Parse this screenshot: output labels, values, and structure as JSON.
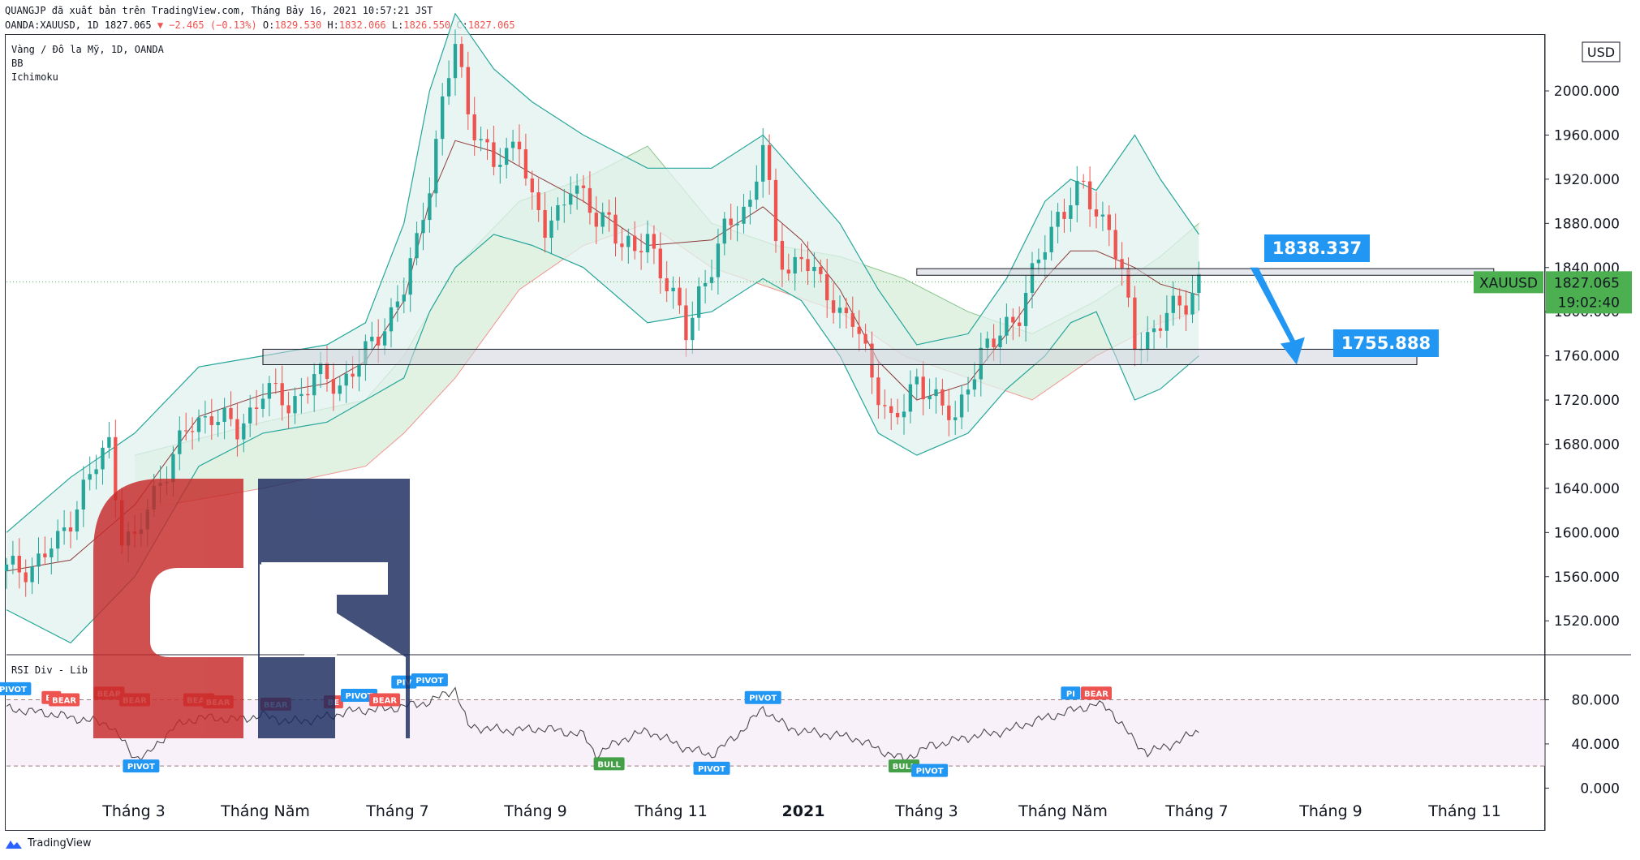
{
  "header": {
    "line1": "QUANGJP đã xuất bản trên TradingView.com, Tháng Bảy 16, 2021 10:57:21 JST",
    "symbol_prefix": "OANDA:XAUUSD, 1D 1827.065",
    "change": "▼ −2.465 (−0.13%)",
    "o_label": "O:",
    "o_value": "1829.530",
    "h_label": "H:",
    "h_value": "1832.066",
    "l_label": "L:",
    "l_value": "1826.550",
    "c_label": "C:",
    "c_value": "1827.065"
  },
  "legend": {
    "title": "Vàng / Đô la Mỹ, 1D, OANDA",
    "ind1": "BB",
    "ind2": "Ichimoku",
    "rsi": "RSI Div - Lib"
  },
  "colors": {
    "up": "#26a69a",
    "down": "#ef5350",
    "bb_fill": "#e0f2ee",
    "cloud_green": "#d6ecd6",
    "cloud_red": "#f9dede",
    "accent_blue": "#2196f3",
    "price_green": "#4caf50",
    "logo_red": "#c62828",
    "logo_navy": "#1a2a5e"
  },
  "chart_data": [
    {
      "type": "candlestick",
      "symbol": "XAUUSD",
      "currency": "USD",
      "y_ticks": [
        "1520.000",
        "1560.000",
        "1600.000",
        "1640.000",
        "1680.000",
        "1720.000",
        "1760.000",
        "1800.000",
        "1840.000",
        "1880.000",
        "1920.000",
        "1960.000",
        "2000.000"
      ],
      "ylim": [
        1490,
        2050
      ],
      "x_ticks": [
        "Tháng 3",
        "Tháng Năm",
        "Tháng 7",
        "Tháng 9",
        "Tháng 11",
        "2021",
        "Tháng 3",
        "Tháng Năm",
        "Tháng 7",
        "Tháng 9",
        "Tháng 11"
      ],
      "close_path": [
        [
          0,
          1565
        ],
        [
          4,
          1570
        ],
        [
          8,
          1590
        ],
        [
          12,
          1640
        ],
        [
          16,
          1680
        ],
        [
          18,
          1600
        ],
        [
          20,
          1590
        ],
        [
          24,
          1650
        ],
        [
          28,
          1690
        ],
        [
          32,
          1710
        ],
        [
          36,
          1690
        ],
        [
          40,
          1730
        ],
        [
          44,
          1715
        ],
        [
          48,
          1740
        ],
        [
          52,
          1735
        ],
        [
          56,
          1760
        ],
        [
          60,
          1800
        ],
        [
          62,
          1820
        ],
        [
          64,
          1860
        ],
        [
          66,
          1920
        ],
        [
          68,
          1990
        ],
        [
          70,
          2040
        ],
        [
          72,
          1980
        ],
        [
          74,
          1960
        ],
        [
          76,
          1930
        ],
        [
          78,
          1940
        ],
        [
          80,
          1960
        ],
        [
          82,
          1900
        ],
        [
          84,
          1870
        ],
        [
          86,
          1890
        ],
        [
          88,
          1920
        ],
        [
          90,
          1900
        ],
        [
          92,
          1880
        ],
        [
          94,
          1890
        ],
        [
          96,
          1860
        ],
        [
          98,
          1850
        ],
        [
          100,
          1870
        ],
        [
          102,
          1840
        ],
        [
          104,
          1810
        ],
        [
          106,
          1780
        ],
        [
          108,
          1820
        ],
        [
          110,
          1840
        ],
        [
          112,
          1870
        ],
        [
          114,
          1890
        ],
        [
          116,
          1900
        ],
        [
          118,
          1950
        ],
        [
          120,
          1860
        ],
        [
          122,
          1840
        ],
        [
          124,
          1850
        ],
        [
          126,
          1830
        ],
        [
          128,
          1820
        ],
        [
          130,
          1800
        ],
        [
          132,
          1790
        ],
        [
          134,
          1760
        ],
        [
          136,
          1730
        ],
        [
          138,
          1700
        ],
        [
          140,
          1710
        ],
        [
          142,
          1740
        ],
        [
          144,
          1730
        ],
        [
          146,
          1710
        ],
        [
          148,
          1700
        ],
        [
          150,
          1740
        ],
        [
          152,
          1760
        ],
        [
          154,
          1770
        ],
        [
          156,
          1790
        ],
        [
          158,
          1800
        ],
        [
          160,
          1830
        ],
        [
          162,
          1860
        ],
        [
          164,
          1890
        ],
        [
          166,
          1900
        ],
        [
          168,
          1910
        ],
        [
          170,
          1890
        ],
        [
          172,
          1880
        ],
        [
          174,
          1830
        ],
        [
          176,
          1770
        ],
        [
          178,
          1780
        ],
        [
          180,
          1790
        ],
        [
          182,
          1800
        ],
        [
          184,
          1810
        ],
        [
          186,
          1830
        ]
      ],
      "resistance_zone": [
        1833,
        1839
      ],
      "support_zone": [
        1752,
        1766
      ],
      "current_price": "1827.065",
      "countdown": "19:02:40",
      "annotations": [
        "1838.337",
        "1755.888"
      ],
      "bb_upper": [
        [
          0,
          1600
        ],
        [
          10,
          1650
        ],
        [
          20,
          1690
        ],
        [
          30,
          1750
        ],
        [
          40,
          1760
        ],
        [
          50,
          1770
        ],
        [
          56,
          1790
        ],
        [
          62,
          1880
        ],
        [
          66,
          2000
        ],
        [
          70,
          2070
        ],
        [
          76,
          2020
        ],
        [
          82,
          1990
        ],
        [
          90,
          1960
        ],
        [
          100,
          1930
        ],
        [
          110,
          1930
        ],
        [
          118,
          1960
        ],
        [
          124,
          1920
        ],
        [
          130,
          1880
        ],
        [
          136,
          1820
        ],
        [
          142,
          1770
        ],
        [
          150,
          1780
        ],
        [
          156,
          1830
        ],
        [
          162,
          1900
        ],
        [
          166,
          1920
        ],
        [
          170,
          1910
        ],
        [
          176,
          1960
        ],
        [
          180,
          1920
        ],
        [
          186,
          1870
        ]
      ],
      "bb_lower": [
        [
          0,
          1530
        ],
        [
          10,
          1500
        ],
        [
          20,
          1560
        ],
        [
          30,
          1660
        ],
        [
          40,
          1690
        ],
        [
          50,
          1700
        ],
        [
          56,
          1720
        ],
        [
          62,
          1740
        ],
        [
          66,
          1800
        ],
        [
          70,
          1840
        ],
        [
          76,
          1870
        ],
        [
          82,
          1860
        ],
        [
          90,
          1840
        ],
        [
          100,
          1790
        ],
        [
          110,
          1800
        ],
        [
          118,
          1830
        ],
        [
          124,
          1810
        ],
        [
          130,
          1760
        ],
        [
          136,
          1690
        ],
        [
          142,
          1670
        ],
        [
          150,
          1690
        ],
        [
          156,
          1730
        ],
        [
          162,
          1760
        ],
        [
          166,
          1790
        ],
        [
          170,
          1800
        ],
        [
          176,
          1720
        ],
        [
          180,
          1730
        ],
        [
          186,
          1760
        ]
      ],
      "cloud_upper": [
        [
          20,
          1670
        ],
        [
          40,
          1700
        ],
        [
          56,
          1720
        ],
        [
          62,
          1760
        ],
        [
          70,
          1840
        ],
        [
          80,
          1900
        ],
        [
          90,
          1920
        ],
        [
          100,
          1950
        ],
        [
          110,
          1880
        ],
        [
          120,
          1860
        ],
        [
          130,
          1850
        ],
        [
          140,
          1830
        ],
        [
          150,
          1800
        ],
        [
          160,
          1780
        ],
        [
          170,
          1810
        ],
        [
          180,
          1850
        ],
        [
          186,
          1880
        ]
      ],
      "cloud_lower": [
        [
          20,
          1620
        ],
        [
          40,
          1640
        ],
        [
          56,
          1660
        ],
        [
          62,
          1690
        ],
        [
          70,
          1740
        ],
        [
          80,
          1820
        ],
        [
          90,
          1860
        ],
        [
          100,
          1880
        ],
        [
          110,
          1840
        ],
        [
          120,
          1820
        ],
        [
          130,
          1800
        ],
        [
          140,
          1760
        ],
        [
          150,
          1740
        ],
        [
          160,
          1720
        ],
        [
          170,
          1760
        ],
        [
          180,
          1790
        ],
        [
          186,
          1800
        ]
      ]
    },
    {
      "type": "line",
      "name": "RSI Div - Lib",
      "y_ticks": [
        "0.000",
        "40.000",
        "80.000"
      ],
      "ylim": [
        -10,
        120
      ],
      "upper_band": 80,
      "lower_band": 20,
      "rsi_path": [
        [
          0,
          72
        ],
        [
          6,
          68
        ],
        [
          12,
          62
        ],
        [
          16,
          58
        ],
        [
          20,
          28
        ],
        [
          22,
          30
        ],
        [
          26,
          55
        ],
        [
          30,
          64
        ],
        [
          36,
          62
        ],
        [
          40,
          66
        ],
        [
          44,
          60
        ],
        [
          48,
          62
        ],
        [
          54,
          70
        ],
        [
          60,
          72
        ],
        [
          66,
          78
        ],
        [
          70,
          90
        ],
        [
          72,
          56
        ],
        [
          78,
          52
        ],
        [
          84,
          54
        ],
        [
          90,
          48
        ],
        [
          92,
          30
        ],
        [
          96,
          44
        ],
        [
          100,
          52
        ],
        [
          106,
          36
        ],
        [
          110,
          30
        ],
        [
          114,
          48
        ],
        [
          118,
          72
        ],
        [
          122,
          54
        ],
        [
          126,
          50
        ],
        [
          132,
          46
        ],
        [
          138,
          30
        ],
        [
          140,
          26
        ],
        [
          144,
          38
        ],
        [
          150,
          46
        ],
        [
          156,
          52
        ],
        [
          160,
          60
        ],
        [
          166,
          70
        ],
        [
          170,
          76
        ],
        [
          172,
          72
        ],
        [
          176,
          42
        ],
        [
          178,
          32
        ],
        [
          182,
          40
        ],
        [
          186,
          52
        ]
      ],
      "markers": [
        {
          "label": "PIVOT",
          "kind": "pivot",
          "x": 1,
          "v": 90
        },
        {
          "label": "BE",
          "kind": "bear",
          "x": 7,
          "v": 82
        },
        {
          "label": "BEAR",
          "kind": "bear",
          "x": 9,
          "v": 80
        },
        {
          "label": "BEAR",
          "kind": "bear",
          "x": 16,
          "v": 86
        },
        {
          "label": "BEAR",
          "kind": "bear",
          "x": 20,
          "v": 80
        },
        {
          "label": "PIVOT",
          "kind": "pivot_low",
          "x": 21,
          "v": 20
        },
        {
          "label": "BEAR",
          "kind": "bear",
          "x": 30,
          "v": 80
        },
        {
          "label": "BEAR",
          "kind": "bear",
          "x": 33,
          "v": 78
        },
        {
          "label": "BEAR",
          "kind": "bear",
          "x": 42,
          "v": 76
        },
        {
          "label": "BE",
          "kind": "bear",
          "x": 51,
          "v": 78
        },
        {
          "label": "PIVOT",
          "kind": "pivot",
          "x": 55,
          "v": 84
        },
        {
          "label": "BEAR",
          "kind": "bear",
          "x": 59,
          "v": 80
        },
        {
          "label": "PIV",
          "kind": "pivot",
          "x": 62,
          "v": 96
        },
        {
          "label": "PIVOT",
          "kind": "pivot",
          "x": 66,
          "v": 98
        },
        {
          "label": "BULL",
          "kind": "bull",
          "x": 94,
          "v": 22
        },
        {
          "label": "PIVOT",
          "kind": "pivot_low",
          "x": 110,
          "v": 18
        },
        {
          "label": "PIVOT",
          "kind": "pivot",
          "x": 118,
          "v": 82
        },
        {
          "label": "BULL",
          "kind": "bull",
          "x": 140,
          "v": 20
        },
        {
          "label": "PIVOT",
          "kind": "pivot_low",
          "x": 144,
          "v": 16
        },
        {
          "label": "PI",
          "kind": "pivot",
          "x": 166,
          "v": 86
        },
        {
          "label": "BEAR",
          "kind": "bear",
          "x": 170,
          "v": 86
        }
      ]
    }
  ],
  "footer": {
    "brand": "TradingView"
  }
}
